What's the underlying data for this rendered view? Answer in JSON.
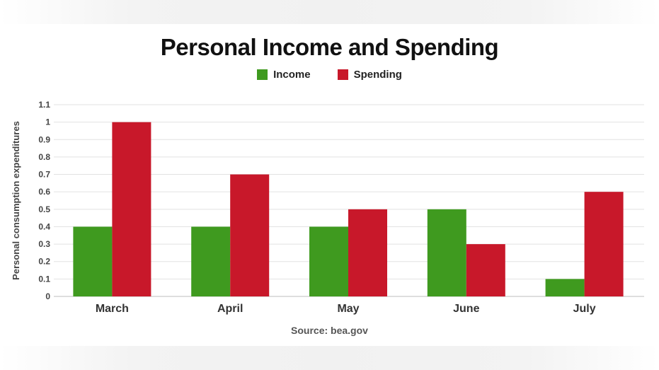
{
  "chart_data": {
    "type": "bar",
    "title": "Personal Income and Spending",
    "ylabel": "Personal consumption expenditures",
    "xlabel": "",
    "categories": [
      "March",
      "April",
      "May",
      "June",
      "July"
    ],
    "series": [
      {
        "name": "Income",
        "color": "#3f9a1f",
        "values": [
          0.4,
          0.4,
          0.4,
          0.5,
          0.1
        ]
      },
      {
        "name": "Spending",
        "color": "#c8182a",
        "values": [
          1.0,
          0.7,
          0.5,
          0.3,
          0.6
        ]
      }
    ],
    "ylim": [
      0,
      1.1
    ],
    "yticks": [
      "0",
      "0.1",
      "0.2",
      "0.3",
      "0.4",
      "0.5",
      "0.6",
      "0.7",
      "0.8",
      "0.9",
      "1",
      "1.1"
    ],
    "grid": true,
    "legend_position": "top"
  },
  "source": "Source: bea.gov"
}
